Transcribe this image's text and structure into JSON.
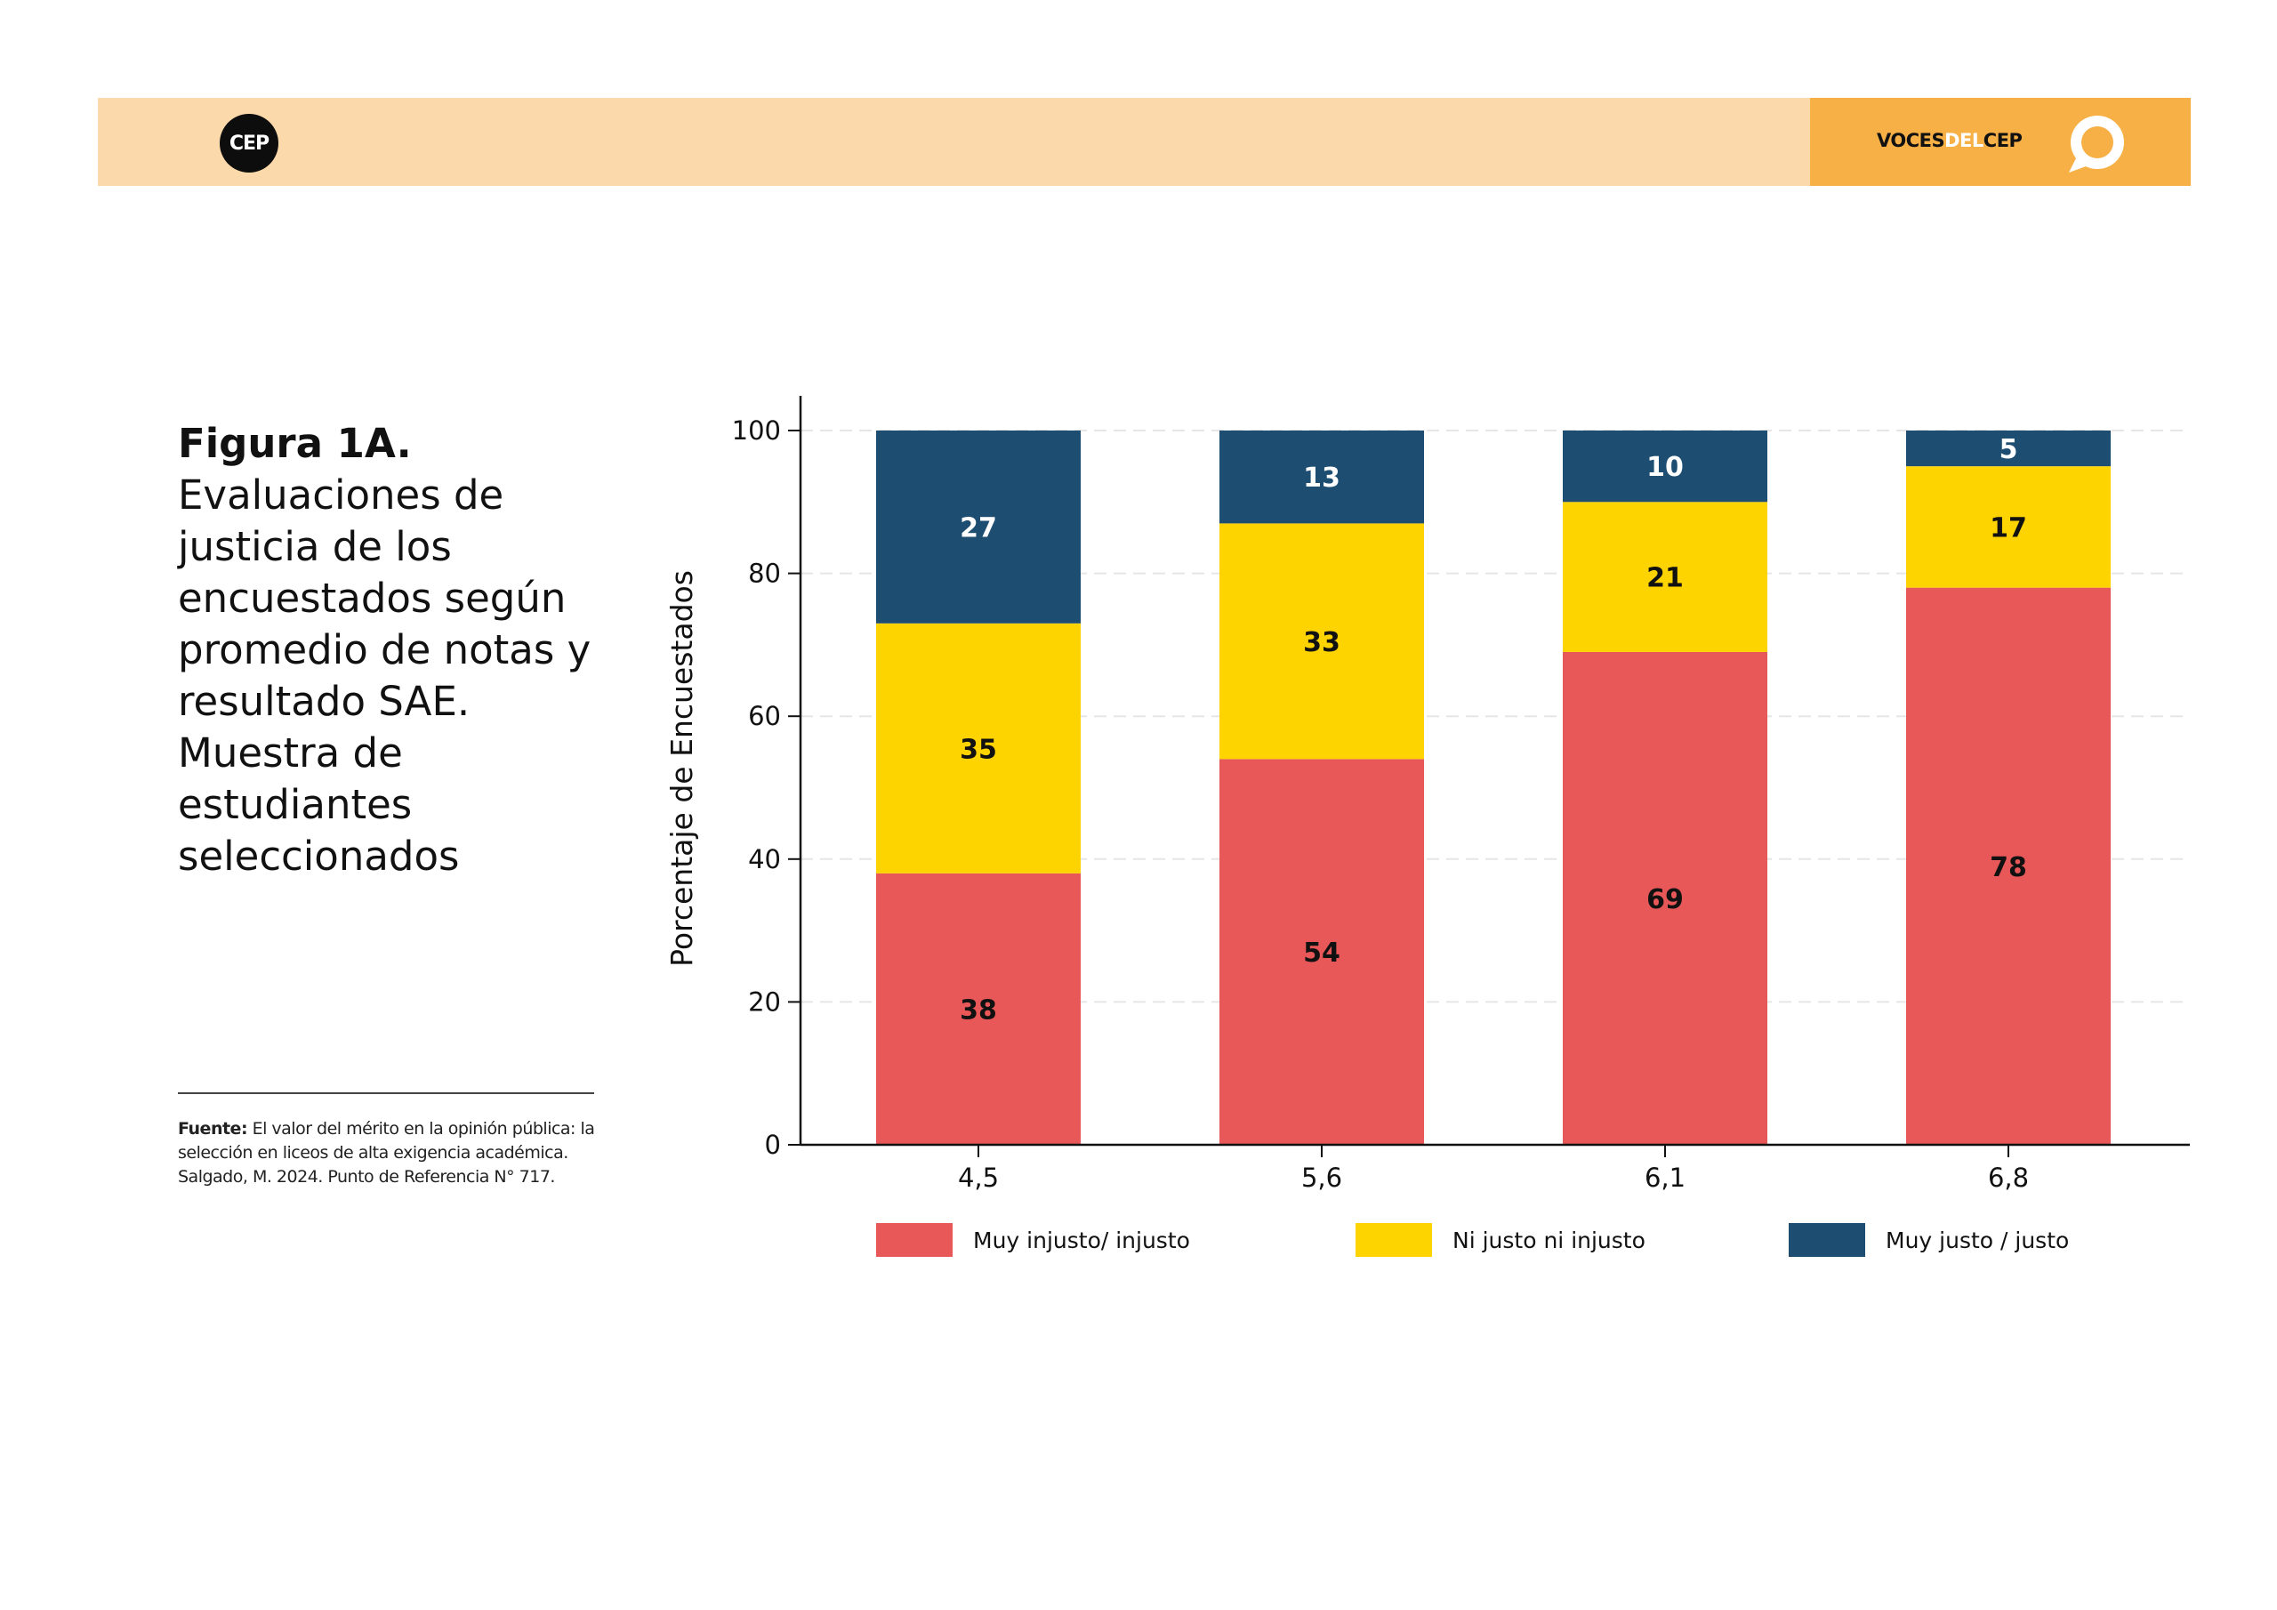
{
  "header": {
    "logo_text": "CEP",
    "brand": {
      "part1": "VOCES",
      "part2": "DEL",
      "part3": "CEP"
    },
    "bar_color": "#fbd9aa",
    "accent_color": "#f7b046",
    "speech_icon": "speech-bubble-icon"
  },
  "figure": {
    "number": "Figura 1A.",
    "title": "Evaluaciones de justicia de los encuestados según promedio de notas y resultado SAE. Muestra de estudiantes seleccionados"
  },
  "source": {
    "label": "Fuente:",
    "text": "El valor del mérito en la opinión pública: la selección en liceos de alta exigencia académica. Salgado, M. 2024. Punto de Referencia N° 717."
  },
  "chart_data": {
    "type": "bar",
    "stacked": true,
    "ylabel": "Porcentaje de Encuestados",
    "xlabel": "",
    "ylim": [
      0,
      100
    ],
    "yticks": [
      0,
      20,
      40,
      60,
      80,
      100
    ],
    "grid": true,
    "legend_position": "bottom",
    "categories": [
      "4,5",
      "5,6",
      "6,1",
      "6,8"
    ],
    "series": [
      {
        "name": "Muy injusto/ injusto",
        "color": "#e95858",
        "label_color": "#111111",
        "values": [
          38,
          54,
          69,
          78
        ]
      },
      {
        "name": "Ni justo ni injusto",
        "color": "#fdd300",
        "label_color": "#111111",
        "values": [
          35,
          33,
          21,
          17
        ]
      },
      {
        "name": "Muy justo / justo",
        "color": "#1d4e72",
        "label_color": "#ffffff",
        "values": [
          27,
          13,
          10,
          5
        ]
      }
    ]
  }
}
